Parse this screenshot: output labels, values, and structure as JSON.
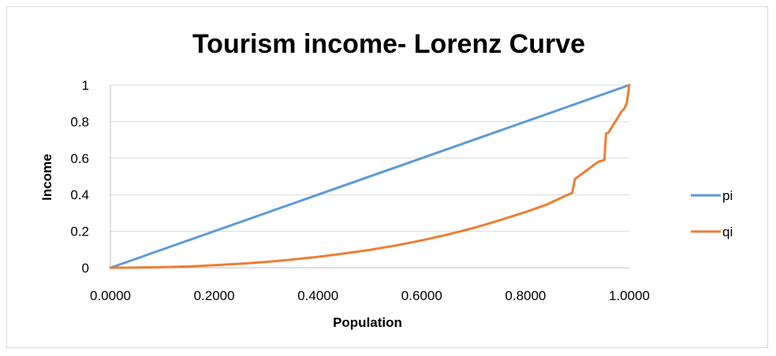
{
  "chart_data": {
    "type": "line",
    "title": "Tourism income- Lorenz Curve",
    "xlabel": "Population",
    "ylabel": "Income",
    "xlim": [
      0,
      1
    ],
    "ylim": [
      0,
      1
    ],
    "x_ticks": [
      "0.0000",
      "0.2000",
      "0.4000",
      "0.6000",
      "0.8000",
      "1.0000"
    ],
    "y_ticks": [
      "0",
      "0.2",
      "0.4",
      "0.6",
      "0.8",
      "1"
    ],
    "grid": "horizontal",
    "legend_position": "right",
    "series": [
      {
        "name": "pi",
        "color": "#5B9BD5",
        "points": [
          [
            0,
            0
          ],
          [
            1,
            1
          ]
        ]
      },
      {
        "name": "qi",
        "color": "#ED7D31",
        "points": [
          [
            0,
            0
          ],
          [
            0.05,
            0.001
          ],
          [
            0.1,
            0.003
          ],
          [
            0.15,
            0.007
          ],
          [
            0.2,
            0.014
          ],
          [
            0.25,
            0.022
          ],
          [
            0.3,
            0.032
          ],
          [
            0.35,
            0.045
          ],
          [
            0.4,
            0.06
          ],
          [
            0.45,
            0.078
          ],
          [
            0.5,
            0.098
          ],
          [
            0.55,
            0.122
          ],
          [
            0.6,
            0.15
          ],
          [
            0.65,
            0.182
          ],
          [
            0.7,
            0.218
          ],
          [
            0.75,
            0.26
          ],
          [
            0.8,
            0.305
          ],
          [
            0.84,
            0.345
          ],
          [
            0.87,
            0.385
          ],
          [
            0.89,
            0.41
          ],
          [
            0.895,
            0.485
          ],
          [
            0.94,
            0.58
          ],
          [
            0.952,
            0.59
          ],
          [
            0.955,
            0.735
          ],
          [
            0.96,
            0.74
          ],
          [
            0.985,
            0.855
          ],
          [
            0.99,
            0.87
          ],
          [
            0.995,
            0.9
          ],
          [
            1,
            1
          ]
        ]
      }
    ]
  }
}
